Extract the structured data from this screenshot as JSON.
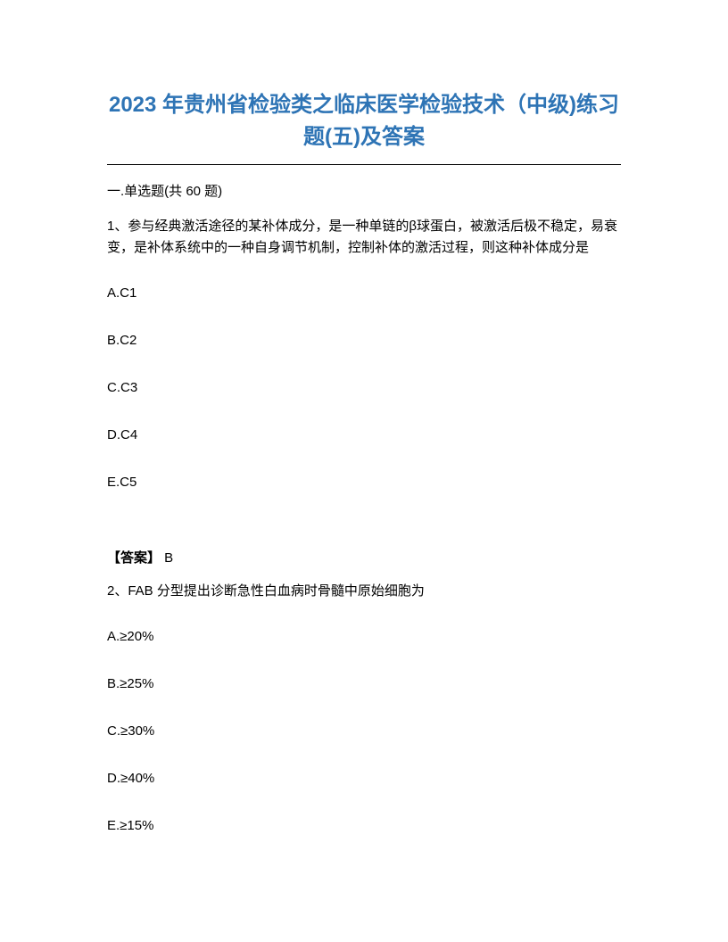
{
  "title": "2023 年贵州省检验类之临床医学检验技术（中级)练习题(五)及答案",
  "section_header": "一.单选题(共 60 题)",
  "question1": {
    "text": "1、参与经典激活途径的某补体成分，是一种单链的β球蛋白，被激活后极不稳定，易衰变，是补体系统中的一种自身调节机制，控制补体的激活过程，则这种补体成分是",
    "options": {
      "a": "A.C1",
      "b": "B.C2",
      "c": "C.C3",
      "d": "D.C4",
      "e": "E.C5"
    },
    "answer_label": "【答案】",
    "answer_value": " B"
  },
  "question2": {
    "text": "2、FAB 分型提出诊断急性白血病时骨髓中原始细胞为",
    "options": {
      "a": "A.≥20%",
      "b": "B.≥25%",
      "c": "C.≥30%",
      "d": "D.≥40%",
      "e": "E.≥15%"
    }
  }
}
